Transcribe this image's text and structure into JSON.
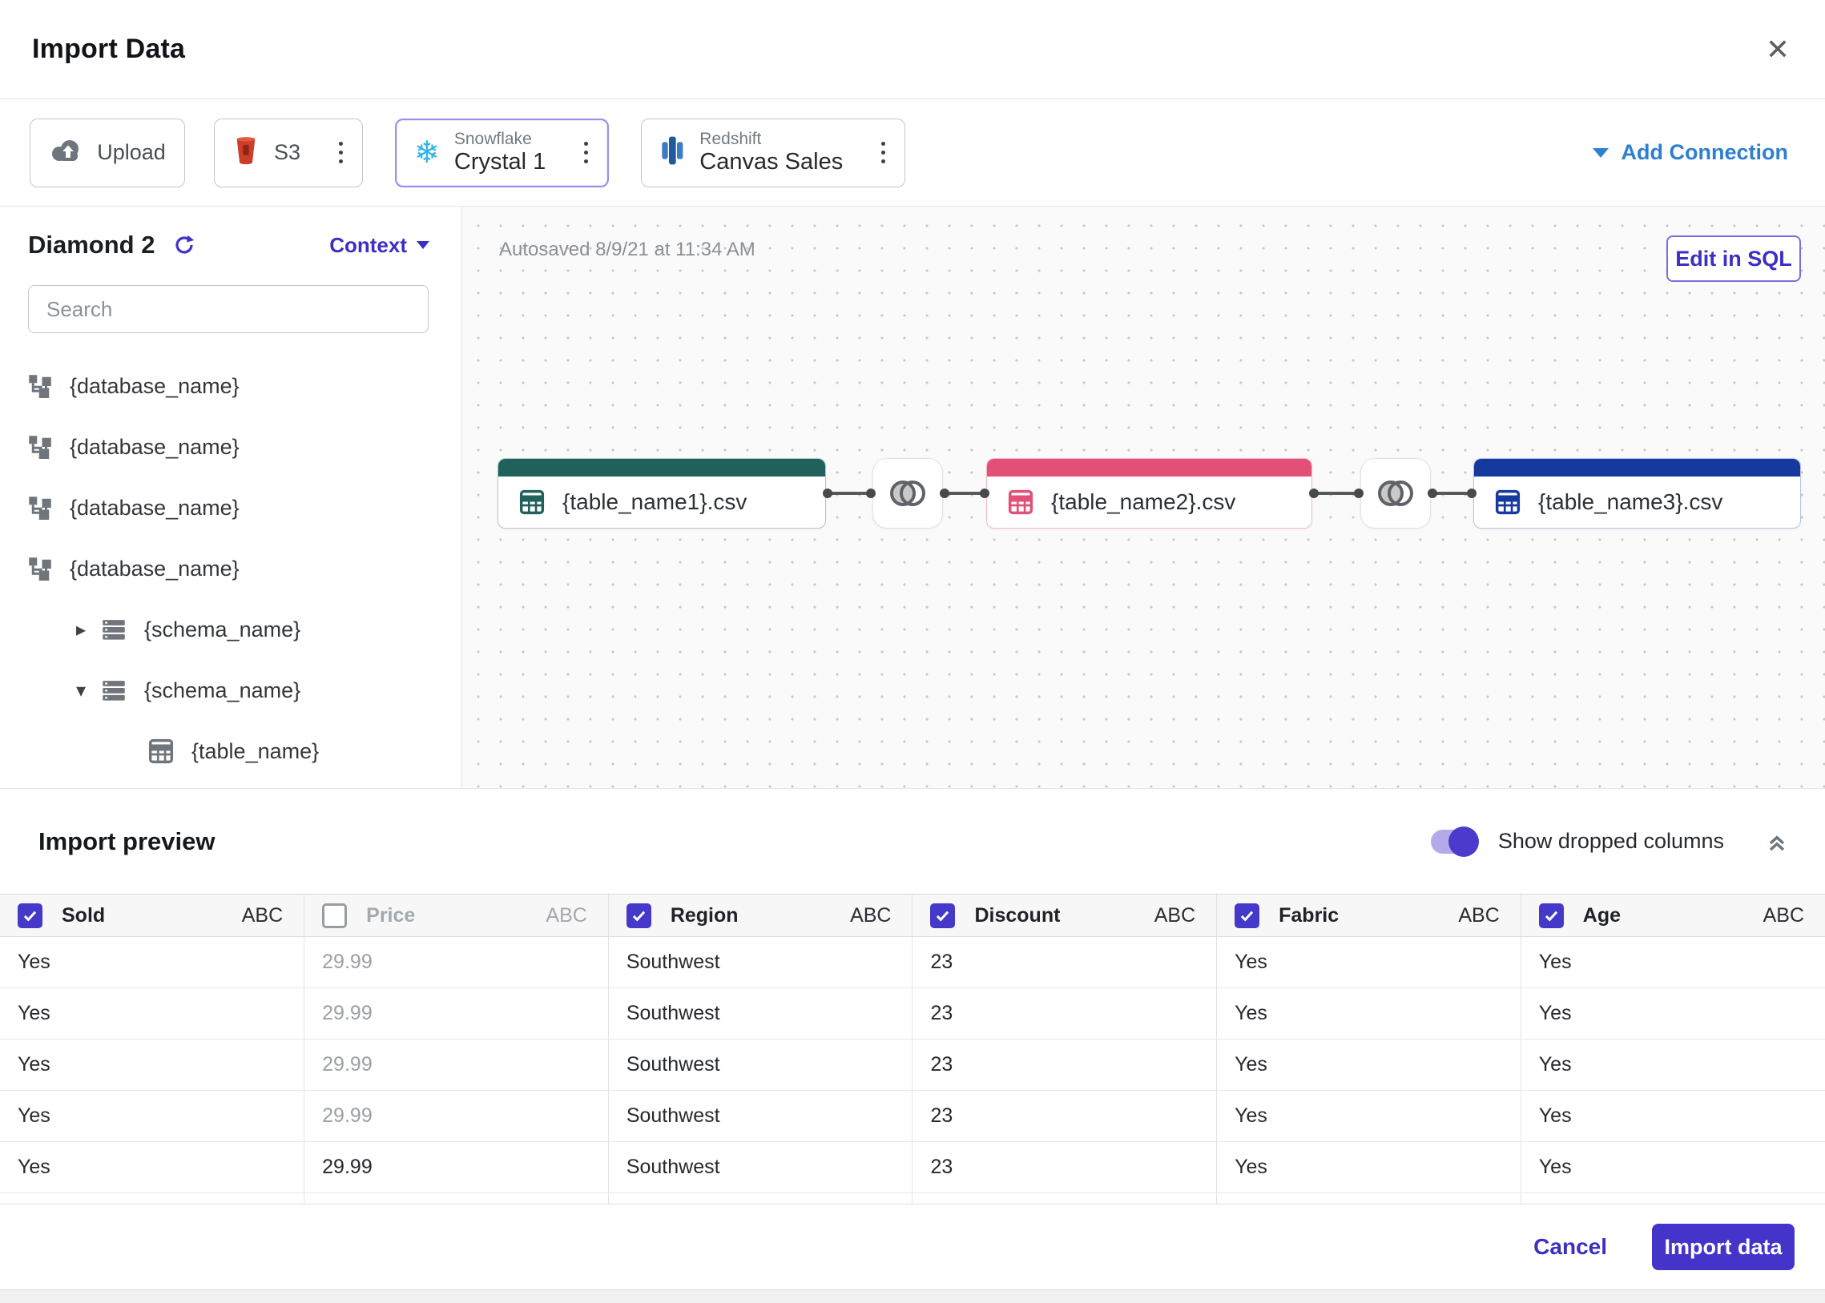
{
  "header": {
    "title": "Import Data"
  },
  "toolbar": {
    "upload_label": "Upload",
    "s3": {
      "label": "S3"
    },
    "snowflake": {
      "service": "Snowflake",
      "name": "Crystal 1",
      "selected": true
    },
    "redshift": {
      "service": "Redshift",
      "name": "Canvas Sales"
    },
    "add_connection_label": "Add Connection"
  },
  "sidebar": {
    "title": "Diamond 2",
    "context_label": "Context",
    "search_placeholder": "Search",
    "tree_items": [
      {
        "type": "database",
        "label": "{database_name}"
      },
      {
        "type": "database",
        "label": "{database_name}"
      },
      {
        "type": "database",
        "label": "{database_name}"
      },
      {
        "type": "database",
        "label": "{database_name}"
      },
      {
        "type": "schema",
        "caret": "collapsed",
        "label": "{schema_name}"
      },
      {
        "type": "schema",
        "caret": "expanded",
        "label": "{schema_name}"
      },
      {
        "type": "table",
        "label": "{table_name}"
      }
    ]
  },
  "canvas": {
    "autosaved_text": "Autosaved 8/9/21 at 11:34 AM",
    "edit_sql_label": "Edit in SQL",
    "nodes": [
      {
        "label": "{table_name1}.csv",
        "accent": "#20615C",
        "border": "#AFCBC7"
      },
      {
        "label": "{table_name2}.csv",
        "accent": "#E25077",
        "border": "#F2BCCB"
      },
      {
        "label": "{table_name3}.csv",
        "accent": "#16399E",
        "border": "#B7C4E4"
      }
    ],
    "join_count": 2
  },
  "preview": {
    "title": "Import preview",
    "toggle_label": "Show dropped columns",
    "toggle_on": true,
    "columns": [
      {
        "name": "Sold",
        "type": "ABC",
        "checked": true,
        "dropped": false
      },
      {
        "name": "Price",
        "type": "ABC",
        "checked": false,
        "dropped": true
      },
      {
        "name": "Region",
        "type": "ABC",
        "checked": true,
        "dropped": false
      },
      {
        "name": "Discount",
        "type": "ABC",
        "checked": true,
        "dropped": false
      },
      {
        "name": "Fabric",
        "type": "ABC",
        "checked": true,
        "dropped": false
      },
      {
        "name": "Age",
        "type": "ABC",
        "checked": true,
        "dropped": false
      }
    ],
    "rows": [
      {
        "cells": [
          "Yes",
          "29.99",
          "Southwest",
          "23",
          "Yes",
          "Yes"
        ],
        "price_muted": true
      },
      {
        "cells": [
          "Yes",
          "29.99",
          "Southwest",
          "23",
          "Yes",
          "Yes"
        ],
        "price_muted": true
      },
      {
        "cells": [
          "Yes",
          "29.99",
          "Southwest",
          "23",
          "Yes",
          "Yes"
        ],
        "price_muted": true
      },
      {
        "cells": [
          "Yes",
          "29.99",
          "Southwest",
          "23",
          "Yes",
          "Yes"
        ],
        "price_muted": true
      },
      {
        "cells": [
          "Yes",
          "29.99",
          "Southwest",
          "23",
          "Yes",
          "Yes"
        ],
        "price_muted": false
      }
    ]
  },
  "footer": {
    "cancel_label": "Cancel",
    "import_label": "Import data"
  },
  "colors": {
    "accent_indigo": "#4534C9",
    "link_blue": "#2E7FD1",
    "snowflake_blue": "#2BB5E8",
    "s3_red": "#CC3E27",
    "redshift_blue": "#2A63A4"
  }
}
